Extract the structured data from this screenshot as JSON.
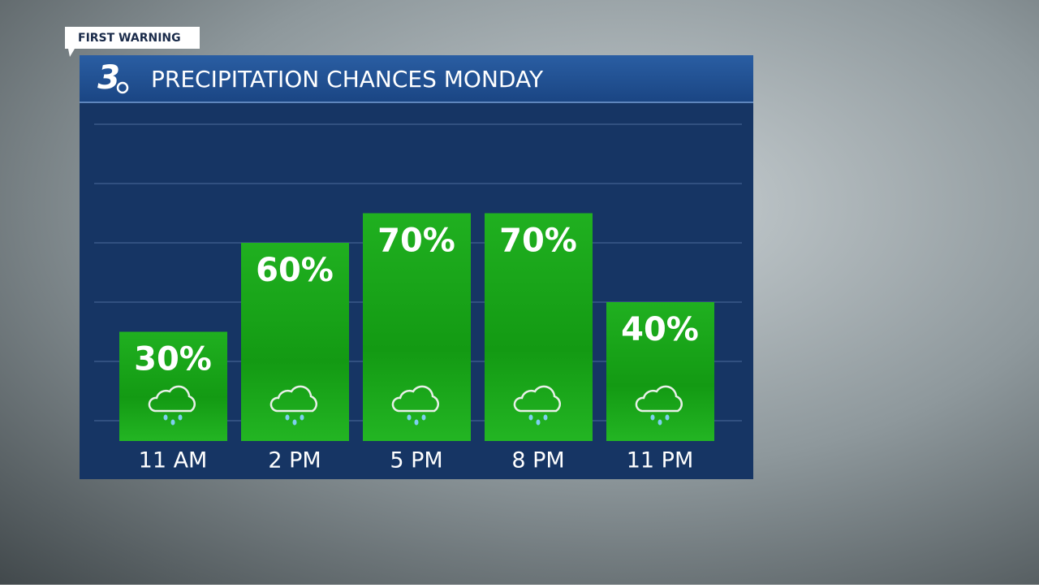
{
  "tag": "FIRST WARNING",
  "logo": "3",
  "chart_data": {
    "type": "bar",
    "title": "PRECIPITATION CHANCES MONDAY",
    "categories": [
      "11 AM",
      "2 PM",
      "5 PM",
      "8 PM",
      "11 PM"
    ],
    "values": [
      30,
      60,
      70,
      70,
      40
    ],
    "value_labels": [
      "30%",
      "60%",
      "70%",
      "70%",
      "40%"
    ],
    "color": "#1fae1f",
    "ylim": [
      0,
      100
    ],
    "yticks": [
      0,
      20,
      40,
      60,
      80,
      100
    ],
    "grid": true
  }
}
